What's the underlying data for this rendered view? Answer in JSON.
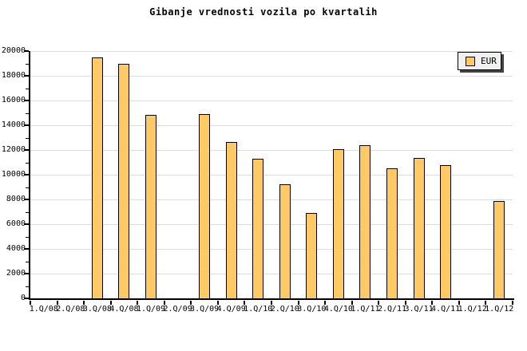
{
  "title": "Gibanje vrednosti vozila po kvartalih",
  "legend": {
    "label": "EUR"
  },
  "colors": {
    "background": "#FFFFFF",
    "bar_fill": "#FFC966",
    "bar_border": "#000000",
    "grid_line": "#DCDCDC",
    "axis": "#000000",
    "text": "#000000",
    "legend_bg": "#F0F0F0",
    "legend_shadow": "#444444"
  },
  "chart_data": {
    "type": "bar",
    "title": "Gibanje vrednosti vozila po kvartalih",
    "xlabel": "",
    "ylabel": "",
    "categories": [
      "1.Q/08",
      "2.Q/08",
      "3.Q/08",
      "4.Q/08",
      "1.Q/09",
      "2.Q/09",
      "3.Q/09",
      "4.Q/09",
      "1.Q/10",
      "2.Q/10",
      "3.Q/10",
      "4.Q/10",
      "1.Q/11",
      "2.Q/11",
      "3.Q/11",
      "4.Q/11",
      "1.Q/12",
      "1.Q/12"
    ],
    "series": [
      {
        "name": "EUR",
        "color": "#FFC966",
        "values": [
          null,
          null,
          19400,
          18900,
          14800,
          null,
          14850,
          12600,
          11200,
          9150,
          6850,
          12000,
          12350,
          10450,
          11300,
          10700,
          null,
          7800
        ]
      }
    ],
    "ylim": [
      0,
      20000
    ],
    "ytick_step": 2000,
    "yminor_step": 1000,
    "ytick_labels": [
      "0",
      "2000",
      "4000",
      "6000",
      "8000",
      "10000",
      "12000",
      "14000",
      "16000",
      "18000",
      "20000"
    ],
    "grid": true,
    "legend_position": "top-right"
  }
}
